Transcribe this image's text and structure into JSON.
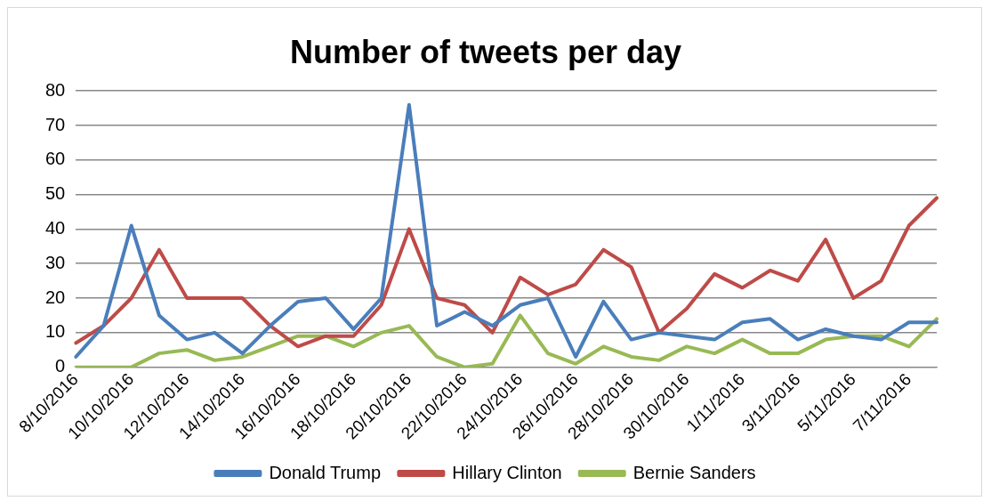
{
  "chart_data": {
    "type": "line",
    "title": "Number of tweets per day",
    "categories": [
      "8/10/2016",
      null,
      "10/10/2016",
      null,
      "12/10/2016",
      null,
      "14/10/2016",
      null,
      "16/10/2016",
      null,
      "18/10/2016",
      null,
      "20/10/2016",
      null,
      "22/10/2016",
      null,
      "24/10/2016",
      null,
      "26/10/2016",
      null,
      "28/10/2016",
      null,
      "30/10/2016",
      null,
      "1/11/2016",
      null,
      "3/11/2016",
      null,
      "5/11/2016",
      null,
      "7/11/2016",
      null
    ],
    "series": [
      {
        "name": "Donald Trump",
        "color": "#4a7ebb",
        "values": [
          3,
          12,
          41,
          15,
          8,
          10,
          4,
          12,
          19,
          20,
          11,
          20,
          76,
          12,
          16,
          12,
          18,
          20,
          3,
          19,
          8,
          10,
          9,
          8,
          13,
          14,
          8,
          11,
          9,
          8,
          13,
          13
        ]
      },
      {
        "name": "Hillary Clinton",
        "color": "#be4b48",
        "values": [
          7,
          12,
          20,
          34,
          20,
          20,
          20,
          12,
          6,
          9,
          9,
          18,
          40,
          20,
          18,
          10,
          26,
          21,
          24,
          34,
          29,
          10,
          17,
          27,
          23,
          28,
          25,
          37,
          20,
          25,
          41,
          49
        ]
      },
      {
        "name": "Bernie Sanders",
        "color": "#98b954",
        "values": [
          0,
          0,
          0,
          4,
          5,
          2,
          3,
          6,
          9,
          9,
          6,
          10,
          12,
          3,
          0,
          1,
          15,
          4,
          1,
          6,
          3,
          2,
          6,
          4,
          8,
          4,
          4,
          8,
          9,
          9,
          6,
          14
        ]
      }
    ],
    "ylim": [
      0,
      80
    ],
    "yticks": [
      0,
      10,
      20,
      30,
      40,
      50,
      60,
      70,
      80
    ],
    "grid": "y",
    "legend": "bottom",
    "marker": "none",
    "line_style": "solid"
  }
}
